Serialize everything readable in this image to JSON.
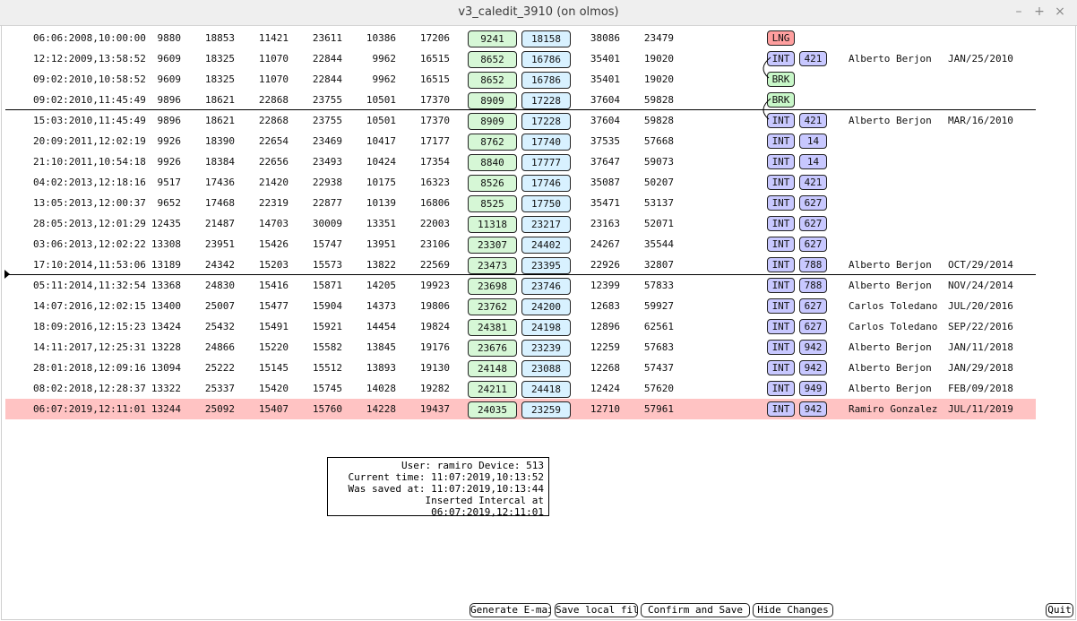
{
  "window": {
    "title": "v3_caledit_3910 (on olmos)"
  },
  "rows": [
    {
      "date": "06:06:2008,10:00:00",
      "v1": "9880",
      "v2": "18853",
      "v3": "11421",
      "v4": "23611",
      "v5": "10386",
      "v6": "17206",
      "a": "9241",
      "b": "18158",
      "v7": "38086",
      "v8": "23479",
      "tag": "LNG",
      "num": "",
      "name": "",
      "sig": ""
    },
    {
      "date": "12:12:2009,13:58:52",
      "v1": "9609",
      "v2": "18325",
      "v3": "11070",
      "v4": "22844",
      "v5": "9962",
      "v6": "16515",
      "a": "8652",
      "b": "16786",
      "v7": "35401",
      "v8": "19020",
      "tag": "INT",
      "num": "421",
      "name": "Alberto Berjon",
      "sig": "JAN/25/2010"
    },
    {
      "date": "09:02:2010,10:58:52",
      "v1": "9609",
      "v2": "18325",
      "v3": "11070",
      "v4": "22844",
      "v5": "9962",
      "v6": "16515",
      "a": "8652",
      "b": "16786",
      "v7": "35401",
      "v8": "19020",
      "tag": "BRK",
      "num": "",
      "name": "",
      "sig": ""
    },
    {
      "date": "09:02:2010,11:45:49",
      "v1": "9896",
      "v2": "18621",
      "v3": "22868",
      "v4": "23755",
      "v5": "10501",
      "v6": "17370",
      "a": "8909",
      "b": "17228",
      "v7": "37604",
      "v8": "59828",
      "tag": "BRK",
      "num": "",
      "name": "",
      "sig": ""
    },
    {
      "date": "15:03:2010,11:45:49",
      "v1": "9896",
      "v2": "18621",
      "v3": "22868",
      "v4": "23755",
      "v5": "10501",
      "v6": "17370",
      "a": "8909",
      "b": "17228",
      "v7": "37604",
      "v8": "59828",
      "tag": "INT",
      "num": "421",
      "name": "Alberto Berjon",
      "sig": "MAR/16/2010"
    },
    {
      "date": "20:09:2011,12:02:19",
      "v1": "9926",
      "v2": "18390",
      "v3": "22654",
      "v4": "23469",
      "v5": "10417",
      "v6": "17177",
      "a": "8762",
      "b": "17740",
      "v7": "37535",
      "v8": "57668",
      "tag": "INT",
      "num": "14",
      "name": "",
      "sig": ""
    },
    {
      "date": "21:10:2011,10:54:18",
      "v1": "9926",
      "v2": "18384",
      "v3": "22656",
      "v4": "23493",
      "v5": "10424",
      "v6": "17354",
      "a": "8840",
      "b": "17777",
      "v7": "37647",
      "v8": "59073",
      "tag": "INT",
      "num": "14",
      "name": "",
      "sig": ""
    },
    {
      "date": "04:02:2013,12:18:16",
      "v1": "9517",
      "v2": "17436",
      "v3": "21420",
      "v4": "22938",
      "v5": "10175",
      "v6": "16323",
      "a": "8526",
      "b": "17746",
      "v7": "35087",
      "v8": "50207",
      "tag": "INT",
      "num": "421",
      "name": "",
      "sig": ""
    },
    {
      "date": "13:05:2013,12:00:37",
      "v1": "9652",
      "v2": "17468",
      "v3": "22319",
      "v4": "22877",
      "v5": "10139",
      "v6": "16806",
      "a": "8525",
      "b": "17750",
      "v7": "35471",
      "v8": "53137",
      "tag": "INT",
      "num": "627",
      "name": "",
      "sig": ""
    },
    {
      "date": "28:05:2013,12:01:29",
      "v1": "12435",
      "v2": "21487",
      "v3": "14703",
      "v4": "30009",
      "v5": "13351",
      "v6": "22003",
      "a": "11318",
      "b": "23217",
      "v7": "23163",
      "v8": "52071",
      "tag": "INT",
      "num": "627",
      "name": "",
      "sig": ""
    },
    {
      "date": "03:06:2013,12:02:22",
      "v1": "13308",
      "v2": "23951",
      "v3": "15426",
      "v4": "15747",
      "v5": "13951",
      "v6": "23106",
      "a": "23307",
      "b": "24402",
      "v7": "24267",
      "v8": "35544",
      "tag": "INT",
      "num": "627",
      "name": "",
      "sig": ""
    },
    {
      "date": "17:10:2014,11:53:06",
      "v1": "13189",
      "v2": "24342",
      "v3": "15203",
      "v4": "15573",
      "v5": "13822",
      "v6": "22569",
      "a": "23473",
      "b": "23395",
      "v7": "22926",
      "v8": "32807",
      "tag": "INT",
      "num": "788",
      "name": "Alberto Berjon",
      "sig": "OCT/29/2014"
    },
    {
      "date": "05:11:2014,11:32:54",
      "v1": "13368",
      "v2": "24830",
      "v3": "15416",
      "v4": "15871",
      "v5": "14205",
      "v6": "19923",
      "a": "23698",
      "b": "23746",
      "v7": "12399",
      "v8": "57833",
      "tag": "INT",
      "num": "788",
      "name": "Alberto Berjon",
      "sig": "NOV/24/2014"
    },
    {
      "date": "14:07:2016,12:02:15",
      "v1": "13400",
      "v2": "25007",
      "v3": "15477",
      "v4": "15904",
      "v5": "14373",
      "v6": "19806",
      "a": "23762",
      "b": "24200",
      "v7": "12683",
      "v8": "59927",
      "tag": "INT",
      "num": "627",
      "name": "Carlos Toledano",
      "sig": "JUL/20/2016"
    },
    {
      "date": "18:09:2016,12:15:23",
      "v1": "13424",
      "v2": "25432",
      "v3": "15491",
      "v4": "15921",
      "v5": "14454",
      "v6": "19824",
      "a": "24381",
      "b": "24198",
      "v7": "12896",
      "v8": "62561",
      "tag": "INT",
      "num": "627",
      "name": "Carlos Toledano",
      "sig": "SEP/22/2016"
    },
    {
      "date": "14:11:2017,12:25:31",
      "v1": "13228",
      "v2": "24866",
      "v3": "15220",
      "v4": "15582",
      "v5": "13845",
      "v6": "19176",
      "a": "23676",
      "b": "23239",
      "v7": "12259",
      "v8": "57683",
      "tag": "INT",
      "num": "942",
      "name": "Alberto Berjon",
      "sig": "JAN/11/2018"
    },
    {
      "date": "28:01:2018,12:09:16",
      "v1": "13094",
      "v2": "25222",
      "v3": "15145",
      "v4": "15512",
      "v5": "13893",
      "v6": "19130",
      "a": "24148",
      "b": "23088",
      "v7": "12268",
      "v8": "57437",
      "tag": "INT",
      "num": "942",
      "name": "Alberto Berjon",
      "sig": "JAN/29/2018"
    },
    {
      "date": "08:02:2018,12:28:37",
      "v1": "13322",
      "v2": "25337",
      "v3": "15420",
      "v4": "15745",
      "v5": "14028",
      "v6": "19282",
      "a": "24211",
      "b": "24418",
      "v7": "12424",
      "v8": "57620",
      "tag": "INT",
      "num": "949",
      "name": "Alberto Berjon",
      "sig": "FEB/09/2018"
    },
    {
      "date": "06:07:2019,12:11:01",
      "v1": "13244",
      "v2": "25092",
      "v3": "15407",
      "v4": "15760",
      "v5": "14228",
      "v6": "19437",
      "a": "24035",
      "b": "23259",
      "v7": "12710",
      "v8": "57961",
      "tag": "INT",
      "num": "942",
      "name": "Ramiro Gonzalez",
      "sig": "JUL/11/2019"
    }
  ],
  "info": {
    "line1": "User: ramiro Device: 513",
    "line2": "Current time: 11:07:2019,10:13:52",
    "line3": "Was saved at: 11:07:2019,10:13:44",
    "line4": "Inserted Intercal at 06:07:2019,12:11:01"
  },
  "buttons": {
    "email": "Generate E-mail",
    "save_local": "Save local file",
    "confirm": "Confirm and Save",
    "hide": "Hide Changes",
    "quit": "Quit"
  },
  "colors": {
    "highlight_row": "#ffc3c3",
    "box_a": "#d6f7d6",
    "box_b": "#d8f1ff",
    "int_tag": "#c8c8ff",
    "brk_tag": "#c8f7c8",
    "lng_tag": "#ff9f9f"
  }
}
